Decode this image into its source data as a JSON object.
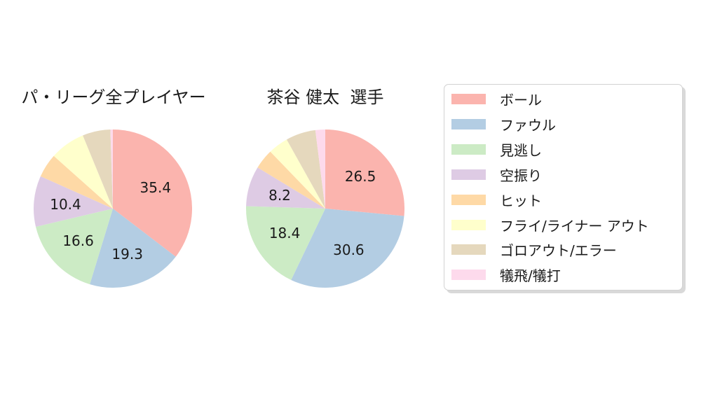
{
  "background_color": "#ffffff",
  "text_color": "#1a1a1a",
  "chart_data": [
    {
      "type": "pie",
      "title": "パ・リーグ全プレイヤー",
      "labels": [
        "ボール",
        "ファウル",
        "見逃し",
        "空振り",
        "ヒット",
        "フライ/ライナー アウト",
        "ゴロアウト/エラー",
        "犠飛/犠打"
      ],
      "values": [
        35.4,
        19.3,
        16.6,
        10.4,
        4.9,
        7.2,
        5.7,
        0.5
      ],
      "shown_value_labels": [
        "35.4",
        "19.3",
        "16.6",
        "10.4",
        null,
        null,
        null,
        null
      ],
      "colors": [
        "#fbb4ae",
        "#b3cde3",
        "#ccebc5",
        "#decbe4",
        "#fed9a6",
        "#ffffcc",
        "#e5d8bd",
        "#fddaec"
      ],
      "start_angle_deg": 90,
      "direction": "clockwise",
      "label_radius_fraction": 0.6
    },
    {
      "type": "pie",
      "title": "茶谷 健太  選手",
      "labels": [
        "ボール",
        "ファウル",
        "見逃し",
        "空振り",
        "ヒット",
        "フライ/ライナー アウト",
        "ゴロアウト/エラー",
        "犠飛/犠打"
      ],
      "values": [
        26.5,
        30.6,
        18.4,
        8.2,
        4.1,
        4.1,
        6.1,
        2.0
      ],
      "shown_value_labels": [
        "26.5",
        "30.6",
        "18.4",
        "8.2",
        null,
        null,
        null,
        null
      ],
      "colors": [
        "#fbb4ae",
        "#b3cde3",
        "#ccebc5",
        "#decbe4",
        "#fed9a6",
        "#ffffcc",
        "#e5d8bd",
        "#fddaec"
      ],
      "start_angle_deg": 90,
      "direction": "clockwise",
      "label_radius_fraction": 0.6
    }
  ],
  "legend": {
    "position": "right",
    "items": [
      {
        "label": "ボール",
        "color": "#fbb4ae"
      },
      {
        "label": "ファウル",
        "color": "#b3cde3"
      },
      {
        "label": "見逃し",
        "color": "#ccebc5"
      },
      {
        "label": "空振り",
        "color": "#decbe4"
      },
      {
        "label": "ヒット",
        "color": "#fed9a6"
      },
      {
        "label": "フライ/ライナー アウト",
        "color": "#ffffcc"
      },
      {
        "label": "ゴロアウト/エラー",
        "color": "#e5d8bd"
      },
      {
        "label": "犠飛/犠打",
        "color": "#fddaec"
      }
    ]
  }
}
